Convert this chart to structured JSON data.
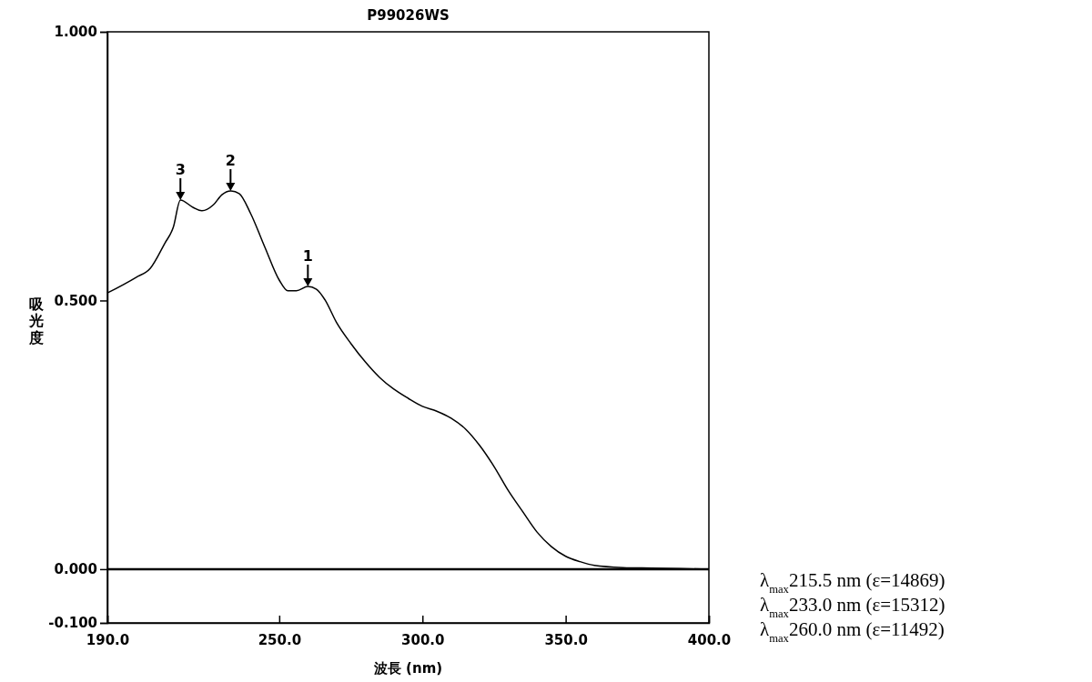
{
  "chart_data": {
    "type": "line",
    "title": "P99026WS",
    "xlabel": "波長 (nm)",
    "ylabel": "吸光度",
    "x": [
      190,
      200,
      205,
      210,
      213,
      215.5,
      220,
      223,
      227,
      230,
      233,
      236,
      240,
      245,
      250,
      253,
      256,
      260,
      263,
      266,
      270,
      275,
      280,
      285,
      290,
      295,
      300,
      305,
      310,
      315,
      320,
      325,
      330,
      335,
      340,
      345,
      350,
      355,
      360,
      370,
      380,
      400
    ],
    "series": [
      {
        "color": "#000000",
        "values": [
          0.514,
          0.543,
          0.56,
          0.606,
          0.636,
          0.687,
          0.673,
          0.667,
          0.678,
          0.697,
          0.704,
          0.699,
          0.662,
          0.599,
          0.538,
          0.518,
          0.518,
          0.526,
          0.521,
          0.501,
          0.459,
          0.42,
          0.386,
          0.357,
          0.335,
          0.318,
          0.303,
          0.294,
          0.281,
          0.261,
          0.23,
          0.191,
          0.146,
          0.107,
          0.069,
          0.042,
          0.024,
          0.014,
          0.007,
          0.003,
          0.002,
          0.0
        ]
      }
    ],
    "xlim": [
      190,
      400
    ],
    "ylim": [
      -0.1,
      1.0
    ],
    "xticks": [
      {
        "value": 190,
        "label": "190.0"
      },
      {
        "value": 250,
        "label": "250.0"
      },
      {
        "value": 300,
        "label": "300.0"
      },
      {
        "value": 350,
        "label": "350.0"
      },
      {
        "value": 400,
        "label": "400.0"
      }
    ],
    "yticks": [
      {
        "value": -0.1,
        "label": "-0.100"
      },
      {
        "value": 0,
        "label": "0.000"
      },
      {
        "value": 0.5,
        "label": "0.500"
      },
      {
        "value": 1,
        "label": "1.000"
      }
    ],
    "ref_lines": [
      {
        "axis": "y",
        "value": 0,
        "color": "#000000"
      }
    ],
    "annotations": [
      {
        "text": "3",
        "x": 215.5,
        "y": 0.687
      },
      {
        "text": "2",
        "x": 233,
        "y": 0.704
      },
      {
        "text": "1",
        "x": 260,
        "y": 0.526
      },
      "λ$_{max}$215.5 nm (ε=14869)",
      "λ$_{max}$233.0 nm (ε=15312)",
      "λ$_{max}$260.0 nm (ε=11492)"
    ],
    "grid": false,
    "marker": "none",
    "line_style": "solid"
  }
}
